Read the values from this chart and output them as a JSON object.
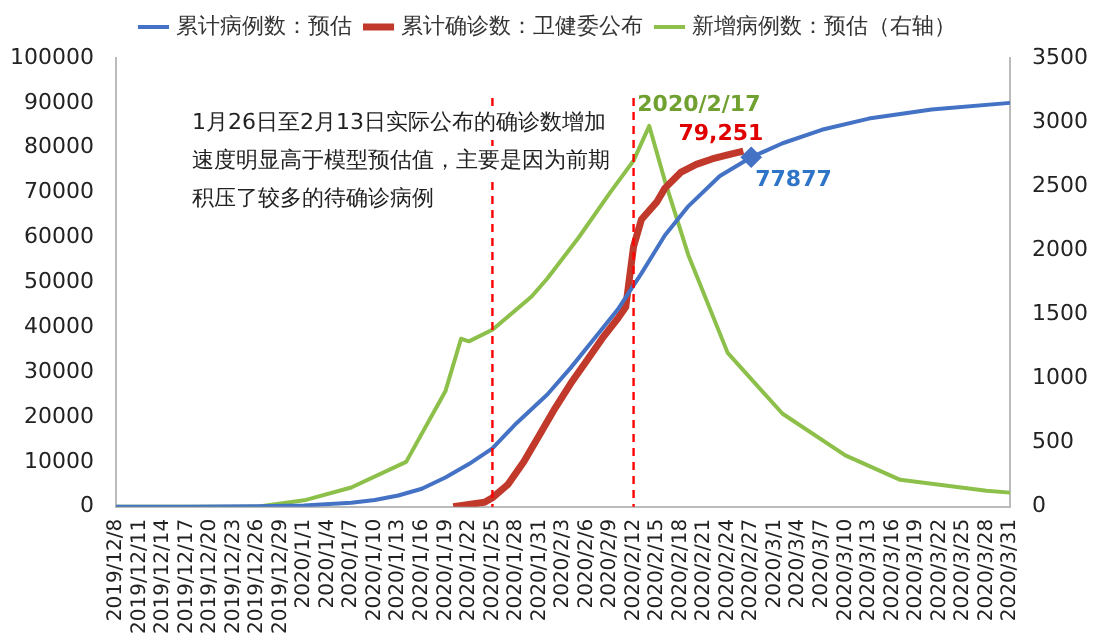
{
  "chart_data": {
    "type": "line",
    "annotations": [
      "1月26日至2月13日实际公布的确诊数增加速度明显高于模型预估值，主要是因为前期积压了较多的待确诊病例",
      "2020/2/17"
    ],
    "xlim": [
      "2019-12-08",
      "2020-03-31"
    ],
    "xticks": [
      {
        "value": "2019-12-08",
        "label": "2019/12/8"
      },
      {
        "value": "2019-12-11",
        "label": "2019/12/11"
      },
      {
        "value": "2019-12-14",
        "label": "2019/12/14"
      },
      {
        "value": "2019-12-17",
        "label": "2019/12/17"
      },
      {
        "value": "2019-12-20",
        "label": "2019/12/20"
      },
      {
        "value": "2019-12-23",
        "label": "2019/12/23"
      },
      {
        "value": "2019-12-26",
        "label": "2019/12/26"
      },
      {
        "value": "2019-12-29",
        "label": "2019/12/29"
      },
      {
        "value": "2020-01-01",
        "label": "2020/1/1"
      },
      {
        "value": "2020-01-04",
        "label": "2020/1/4"
      },
      {
        "value": "2020-01-07",
        "label": "2020/1/7"
      },
      {
        "value": "2020-01-10",
        "label": "2020/1/10"
      },
      {
        "value": "2020-01-13",
        "label": "2020/1/13"
      },
      {
        "value": "2020-01-16",
        "label": "2020/1/16"
      },
      {
        "value": "2020-01-19",
        "label": "2020/1/19"
      },
      {
        "value": "2020-01-22",
        "label": "2020/1/22"
      },
      {
        "value": "2020-01-25",
        "label": "2020/1/25"
      },
      {
        "value": "2020-01-28",
        "label": "2020/1/28"
      },
      {
        "value": "2020-01-31",
        "label": "2020/1/31"
      },
      {
        "value": "2020-02-03",
        "label": "2020/2/3"
      },
      {
        "value": "2020-02-06",
        "label": "2020/2/6"
      },
      {
        "value": "2020-02-09",
        "label": "2020/2/9"
      },
      {
        "value": "2020-02-12",
        "label": "2020/2/12"
      },
      {
        "value": "2020-02-15",
        "label": "2020/2/15"
      },
      {
        "value": "2020-02-18",
        "label": "2020/2/18"
      },
      {
        "value": "2020-02-21",
        "label": "2020/2/21"
      },
      {
        "value": "2020-02-24",
        "label": "2020/2/24"
      },
      {
        "value": "2020-02-27",
        "label": "2020/2/27"
      },
      {
        "value": "2020-03-01",
        "label": "2020/3/1"
      },
      {
        "value": "2020-03-04",
        "label": "2020/3/4"
      },
      {
        "value": "2020-03-07",
        "label": "2020/3/7"
      },
      {
        "value": "2020-03-10",
        "label": "2020/3/10"
      },
      {
        "value": "2020-03-13",
        "label": "2020/3/13"
      },
      {
        "value": "2020-03-16",
        "label": "2020/3/16"
      },
      {
        "value": "2020-03-19",
        "label": "2020/3/19"
      },
      {
        "value": "2020-03-22",
        "label": "2020/3/22"
      },
      {
        "value": "2020-03-25",
        "label": "2020/3/25"
      },
      {
        "value": "2020-03-28",
        "label": "2020/3/28"
      },
      {
        "value": "2020-03-31",
        "label": "2020/3/31"
      }
    ],
    "ylim": [
      0,
      100000
    ],
    "yticks": [
      0,
      10000,
      20000,
      30000,
      40000,
      50000,
      60000,
      70000,
      80000,
      90000,
      100000
    ],
    "y2lim": [
      0,
      3500
    ],
    "y2ticks": [
      0,
      500,
      1000,
      1500,
      2000,
      2500,
      3000,
      3500
    ],
    "legend": "top",
    "grid": false,
    "marker": "none",
    "ref_lines": [
      {
        "axis": "x",
        "value": "2020-01-25",
        "color": "#ff0000",
        "line_style": "dashed"
      },
      {
        "axis": "x",
        "value": "2020-02-12",
        "color": "#ff0000",
        "line_style": "dashed"
      }
    ],
    "series": [
      {
        "name": "累计病例数：预估",
        "color": "#4472c4",
        "x": [
          "2019-12-08",
          "2019-12-17",
          "2019-12-26",
          "2020-01-01",
          "2020-01-07",
          "2020-01-10",
          "2020-01-13",
          "2020-01-16",
          "2020-01-19",
          "2020-01-22",
          "2020-01-25",
          "2020-01-28",
          "2020-02-01",
          "2020-02-04",
          "2020-02-07",
          "2020-02-10",
          "2020-02-13",
          "2020-02-16",
          "2020-02-19",
          "2020-02-23",
          "2020-02-27",
          "2020-03-02",
          "2020-03-07",
          "2020-03-13",
          "2020-03-21",
          "2020-03-31"
        ],
        "values": [
          0,
          0,
          100,
          300,
          900,
          1500,
          2500,
          4000,
          6500,
          9500,
          13000,
          18500,
          25000,
          31000,
          37500,
          44000,
          52000,
          60500,
          67000,
          73700,
          77877,
          81000,
          84000,
          86500,
          88500,
          90000
        ],
        "value_labels": [
          null,
          null,
          null,
          null,
          null,
          null,
          null,
          null,
          null,
          null,
          null,
          null,
          null,
          null,
          null,
          null,
          null,
          null,
          null,
          null,
          "77877",
          null,
          null,
          null,
          null,
          null
        ]
      },
      {
        "name": "累计确诊数：卫健委公布",
        "color": "#c0392b",
        "x": [
          "2020-01-20",
          "2020-01-22",
          "2020-01-24",
          "2020-01-25",
          "2020-01-27",
          "2020-01-29",
          "2020-01-31",
          "2020-02-02",
          "2020-02-04",
          "2020-02-06",
          "2020-02-08",
          "2020-02-10",
          "2020-02-11",
          "2020-02-12",
          "2020-02-13",
          "2020-02-15",
          "2020-02-16",
          "2020-02-18",
          "2020-02-20",
          "2020-02-22",
          "2020-02-24",
          "2020-02-26"
        ],
        "values": [
          0,
          500,
          1000,
          2000,
          5000,
          10000,
          16000,
          22000,
          27500,
          32500,
          37500,
          42000,
          44500,
          58000,
          64000,
          68000,
          71000,
          74500,
          76300,
          77500,
          78400,
          79251
        ],
        "value_labels": [
          null,
          null,
          null,
          null,
          null,
          null,
          null,
          null,
          null,
          null,
          null,
          null,
          null,
          null,
          null,
          null,
          null,
          null,
          null,
          null,
          null,
          "79,251"
        ]
      },
      {
        "name": "新增病例数：预估（右轴）",
        "color": "#8cc04a",
        "axis": "y2",
        "x": [
          "2019-12-08",
          "2019-12-17",
          "2019-12-26",
          "2020-01-01",
          "2020-01-07",
          "2020-01-14",
          "2020-01-19",
          "2020-01-21",
          "2020-01-22",
          "2020-01-25",
          "2020-01-30",
          "2020-02-01",
          "2020-02-05",
          "2020-02-09",
          "2020-02-12",
          "2020-02-14",
          "2020-02-16",
          "2020-02-19",
          "2020-02-24",
          "2020-03-02",
          "2020-03-10",
          "2020-03-17",
          "2020-03-28",
          "2020-03-31"
        ],
        "values": [
          0,
          0,
          0,
          50,
          150,
          350,
          900,
          1310,
          1290,
          1380,
          1640,
          1780,
          2100,
          2450,
          2700,
          2970,
          2540,
          1960,
          1200,
          725,
          400,
          210,
          125,
          110
        ]
      }
    ]
  }
}
